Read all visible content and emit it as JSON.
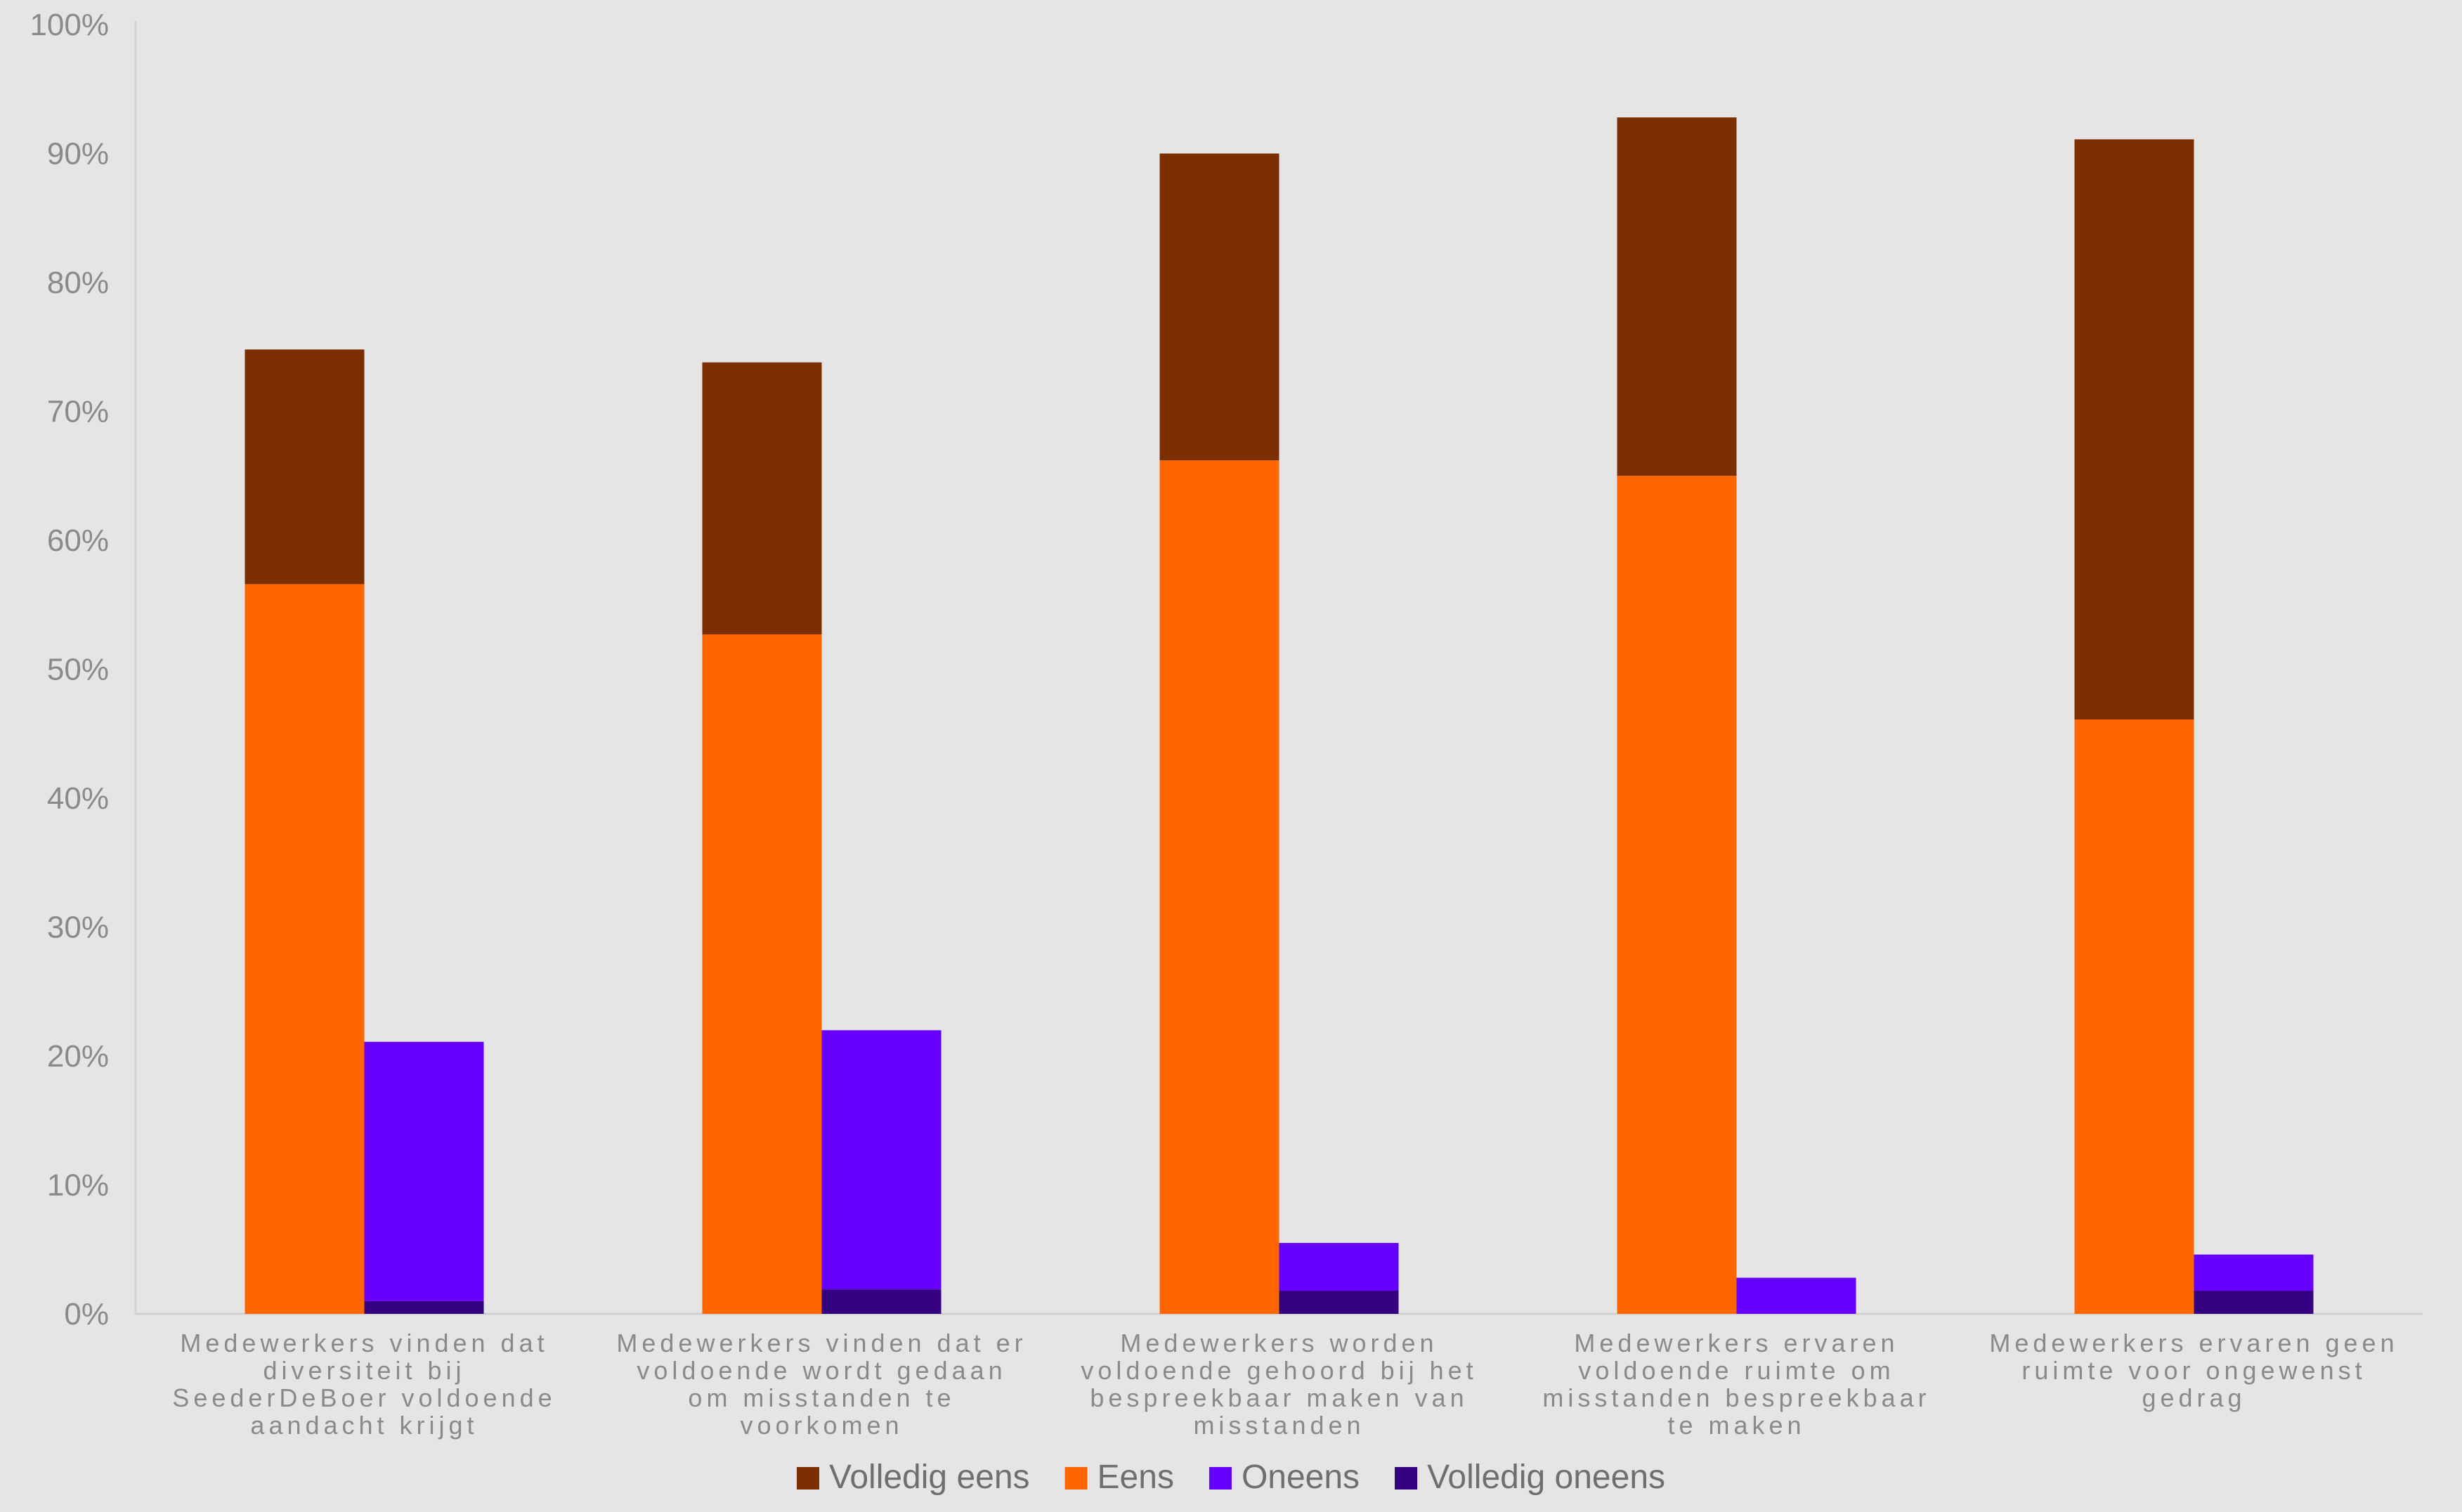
{
  "chart_data": {
    "type": "bar",
    "stacking": "two stacks per category (agree stack left, disagree stack right)",
    "ylim": [
      0,
      100
    ],
    "y_ticks": [
      "0%",
      "10%",
      "20%",
      "30%",
      "40%",
      "50%",
      "60%",
      "70%",
      "80%",
      "90%",
      "100%"
    ],
    "grid": false,
    "legend_position": "bottom",
    "categories": [
      [
        "Medewerkers vinden dat",
        "diversiteit bij",
        "SeederDeBoer voldoende",
        "aandacht krijgt"
      ],
      [
        "Medewerkers vinden dat er",
        "voldoende wordt gedaan",
        "om misstanden te",
        "voorkomen"
      ],
      [
        "Medewerkers worden",
        "voldoende gehoord bij het",
        "bespreekbaar maken van",
        "misstanden"
      ],
      [
        "Medewerkers ervaren",
        "voldoende ruimte om",
        "misstanden bespreekbaar",
        "te maken"
      ],
      [
        "Medewerkers ervaren geen",
        "ruimte voor ongewenst",
        "gedrag"
      ]
    ],
    "series": [
      {
        "name": "Volledig eens",
        "stack": "agree",
        "color": "#7b2f00",
        "values": [
          18.2,
          21.1,
          23.8,
          27.8,
          45.0
        ]
      },
      {
        "name": "Eens",
        "stack": "agree",
        "color": "#ff6600",
        "values": [
          56.6,
          52.7,
          66.2,
          65.0,
          46.1
        ]
      },
      {
        "name": "Oneens",
        "stack": "disagree",
        "color": "#6600ff",
        "values": [
          20.1,
          20.1,
          3.7,
          2.8,
          2.8
        ]
      },
      {
        "name": "Volledig oneens",
        "stack": "disagree",
        "color": "#33007f",
        "values": [
          1.0,
          1.9,
          1.8,
          0.0,
          1.8
        ]
      }
    ]
  }
}
